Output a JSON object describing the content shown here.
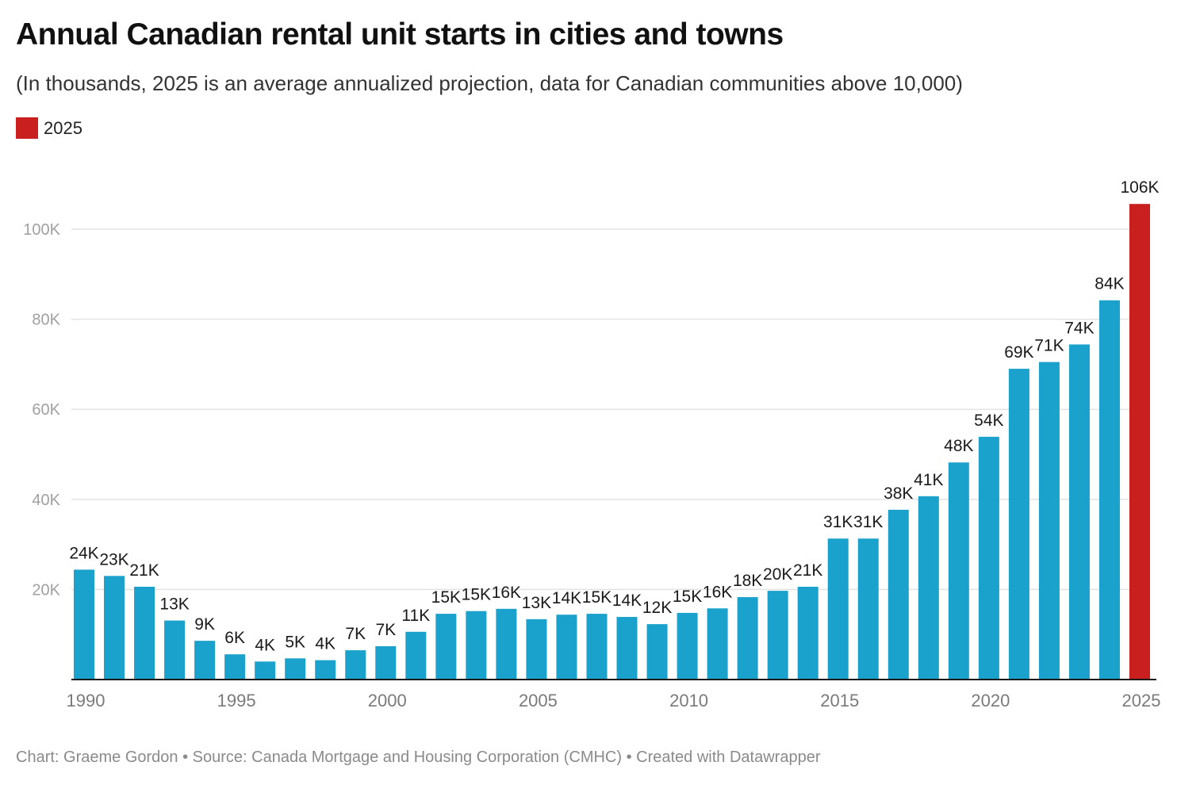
{
  "chart_data": {
    "type": "bar",
    "title": "Annual Canadian rental unit starts in cities and towns",
    "subtitle": "(In thousands, 2025 is an average annualized projection, data for Canadian communities above 10,000)",
    "legend": {
      "position": "top-left",
      "entries": [
        {
          "label": "2025",
          "color": "#c91f1f"
        }
      ]
    },
    "xlabel": "",
    "ylabel": "",
    "ylim": [
      0,
      110000
    ],
    "grid": true,
    "y_ticks": [
      {
        "value": 20000,
        "label": "20K"
      },
      {
        "value": 40000,
        "label": "40K"
      },
      {
        "value": 60000,
        "label": "60K"
      },
      {
        "value": 80000,
        "label": "80K"
      },
      {
        "value": 100000,
        "label": "100K"
      }
    ],
    "x_ticks": [
      "1990",
      "1995",
      "2000",
      "2005",
      "2010",
      "2015",
      "2020",
      "2025"
    ],
    "categories": [
      "1990",
      "1991",
      "1992",
      "1993",
      "1994",
      "1995",
      "1996",
      "1997",
      "1998",
      "1999",
      "2000",
      "2001",
      "2002",
      "2003",
      "2004",
      "2005",
      "2006",
      "2007",
      "2008",
      "2009",
      "2010",
      "2011",
      "2012",
      "2013",
      "2014",
      "2015",
      "2016",
      "2017",
      "2018",
      "2019",
      "2020",
      "2021",
      "2022",
      "2023",
      "2024",
      "2025"
    ],
    "values": [
      24400,
      23000,
      20600,
      13100,
      8600,
      5600,
      4000,
      4700,
      4300,
      6500,
      7400,
      10600,
      14600,
      15200,
      15700,
      13400,
      14400,
      14600,
      13900,
      12300,
      14800,
      15800,
      18300,
      19700,
      20600,
      31300,
      31300,
      37700,
      40700,
      48200,
      53900,
      69000,
      70500,
      74400,
      84200,
      105600
    ],
    "data_labels": [
      "24K",
      "23K",
      "21K",
      "13K",
      "9K",
      "6K",
      "4K",
      "5K",
      "4K",
      "7K",
      "7K",
      "11K",
      "15K",
      "15K",
      "16K",
      "13K",
      "14K",
      "15K",
      "14K",
      "12K",
      "15K",
      "16K",
      "18K",
      "20K",
      "21K",
      "31K",
      "31K",
      "38K",
      "41K",
      "48K",
      "54K",
      "69K",
      "71K",
      "74K",
      "84K",
      "106K"
    ],
    "colors": {
      "default": "#1aa1cc",
      "highlight": "#c91f1f",
      "highlight_category": "2025"
    }
  },
  "footer": {
    "text": "Chart: Graeme Gordon  • Source: Canada Mortgage and Housing Corporation (CMHC) • Created with Datawrapper"
  }
}
